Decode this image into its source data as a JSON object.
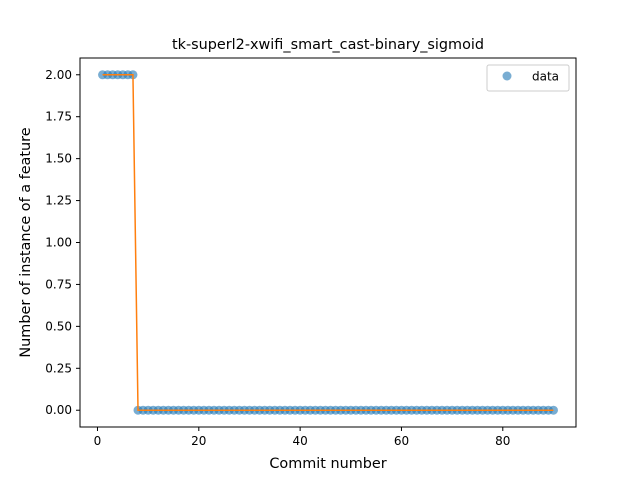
{
  "chart_data": {
    "type": "scatter",
    "title": "tk-superl2-xwifi_smart_cast-binary_sigmoid",
    "xlabel": "Commit number",
    "ylabel": "Number of instance of a feature",
    "xlim": [
      -3.45,
      94.45
    ],
    "ylim": [
      -0.1,
      2.1
    ],
    "xticks": [
      0,
      20,
      40,
      60,
      80
    ],
    "xtick_labels": [
      "0",
      "20",
      "40",
      "60",
      "80"
    ],
    "yticks": [
      0,
      0.25,
      0.5,
      0.75,
      1.0,
      1.25,
      1.5,
      1.75,
      2.0
    ],
    "ytick_labels": [
      "0.00",
      "0.25",
      "0.50",
      "0.75",
      "1.00",
      "1.25",
      "1.50",
      "1.75",
      "2.00"
    ],
    "grid": false,
    "legend_position": "top-right",
    "series": [
      {
        "name": "data",
        "kind": "markers",
        "color": "#1f77b4",
        "x_start": 1,
        "x_end": 90,
        "values": [
          2,
          2,
          2,
          2,
          2,
          2,
          2,
          0,
          0,
          0,
          0,
          0,
          0,
          0,
          0,
          0,
          0,
          0,
          0,
          0,
          0,
          0,
          0,
          0,
          0,
          0,
          0,
          0,
          0,
          0,
          0,
          0,
          0,
          0,
          0,
          0,
          0,
          0,
          0,
          0,
          0,
          0,
          0,
          0,
          0,
          0,
          0,
          0,
          0,
          0,
          0,
          0,
          0,
          0,
          0,
          0,
          0,
          0,
          0,
          0,
          0,
          0,
          0,
          0,
          0,
          0,
          0,
          0,
          0,
          0,
          0,
          0,
          0,
          0,
          0,
          0,
          0,
          0,
          0,
          0,
          0,
          0,
          0,
          0,
          0,
          0,
          0,
          0,
          0,
          0
        ]
      },
      {
        "kind": "line",
        "color": "#ff7f0e",
        "x_start": 1,
        "x_end": 90,
        "values": [
          2,
          2,
          2,
          2,
          2,
          2,
          2,
          0,
          0,
          0,
          0,
          0,
          0,
          0,
          0,
          0,
          0,
          0,
          0,
          0,
          0,
          0,
          0,
          0,
          0,
          0,
          0,
          0,
          0,
          0,
          0,
          0,
          0,
          0,
          0,
          0,
          0,
          0,
          0,
          0,
          0,
          0,
          0,
          0,
          0,
          0,
          0,
          0,
          0,
          0,
          0,
          0,
          0,
          0,
          0,
          0,
          0,
          0,
          0,
          0,
          0,
          0,
          0,
          0,
          0,
          0,
          0,
          0,
          0,
          0,
          0,
          0,
          0,
          0,
          0,
          0,
          0,
          0,
          0,
          0,
          0,
          0,
          0,
          0,
          0,
          0,
          0,
          0,
          0,
          0
        ]
      }
    ]
  }
}
